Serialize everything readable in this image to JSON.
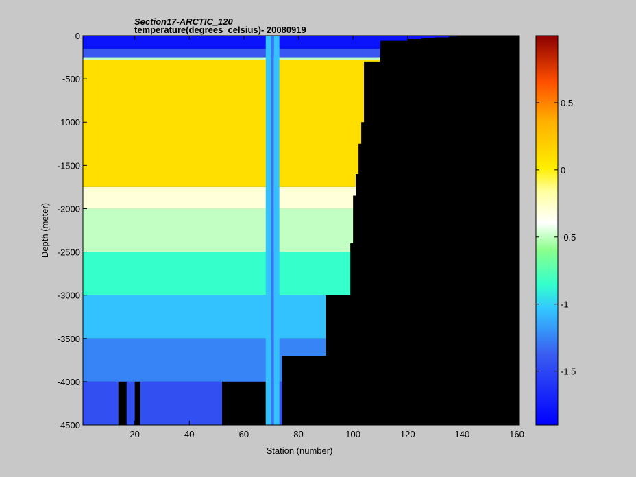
{
  "chart_data": {
    "type": "heatmap",
    "title": "Section17-ARCTIC_120",
    "subtitle": "temperature(degrees_celsius)- 20080919",
    "xlabel": "Station (number)",
    "ylabel": "Depth (meter)",
    "xlim": [
      1,
      161
    ],
    "ylim": [
      -4500,
      0
    ],
    "x_ticks": [
      20,
      40,
      60,
      80,
      100,
      120,
      140,
      160
    ],
    "x_tick_labels": [
      "20",
      "40",
      "60",
      "80",
      "100",
      "120",
      "140",
      "160"
    ],
    "y_ticks": [
      0,
      -500,
      -1000,
      -1500,
      -2000,
      -2500,
      -3000,
      -3500,
      -4000,
      -4500
    ],
    "y_tick_labels": [
      "0",
      "-500",
      "-1000",
      "-1500",
      "-2000",
      "-2500",
      "-3000",
      "-3500",
      "-4000",
      "-4500"
    ],
    "colorbar": {
      "range": [
        -1.9,
        1.0
      ],
      "ticks": [
        0.5,
        0,
        -0.5,
        -1,
        -1.5
      ],
      "tick_labels": [
        "0.5",
        "0",
        "-0.5",
        "-1",
        "-1.5"
      ],
      "colormap": "jet"
    },
    "no_data_color": "#000000",
    "background_color": "#c8c8c8",
    "bottom_depth_profile": {
      "stations": [
        1,
        12,
        14,
        17,
        20,
        22,
        50,
        52,
        68,
        70,
        72,
        74,
        90,
        96,
        99,
        100,
        101,
        102,
        103,
        104,
        110,
        120,
        125,
        130,
        135,
        138,
        161
      ],
      "depths": [
        -4500,
        -4500,
        -4000,
        -4500,
        -4000,
        -4500,
        -4500,
        -4000,
        -4500,
        -4500,
        -4500,
        -3700,
        -3000,
        -3000,
        -2400,
        -1850,
        -1600,
        -1250,
        -1000,
        -300,
        -60,
        -40,
        -30,
        -20,
        -10,
        0,
        0
      ]
    },
    "layers": [
      {
        "top": 0,
        "bottom": -150,
        "value": -1.8
      },
      {
        "top": -150,
        "bottom": -250,
        "value": -1.4
      },
      {
        "top": -250,
        "bottom": -280,
        "value": -0.5
      },
      {
        "top": -280,
        "bottom": -1750,
        "value": 0.1
      },
      {
        "top": -1750,
        "bottom": -2000,
        "value": -0.3
      },
      {
        "top": -2000,
        "bottom": -2500,
        "value": -0.5
      },
      {
        "top": -2500,
        "bottom": -3000,
        "value": -0.85
      },
      {
        "top": -3000,
        "bottom": -3500,
        "value": -1.05
      },
      {
        "top": -3500,
        "bottom": -4000,
        "value": -1.25
      },
      {
        "top": -4000,
        "bottom": -4500,
        "value": -1.45
      }
    ],
    "highlight_stations": [
      {
        "from": 68,
        "to": 70,
        "value": -1.05
      },
      {
        "from": 70,
        "to": 71,
        "value": -1.3
      },
      {
        "from": 71,
        "to": 73,
        "value": -1.05
      }
    ]
  }
}
